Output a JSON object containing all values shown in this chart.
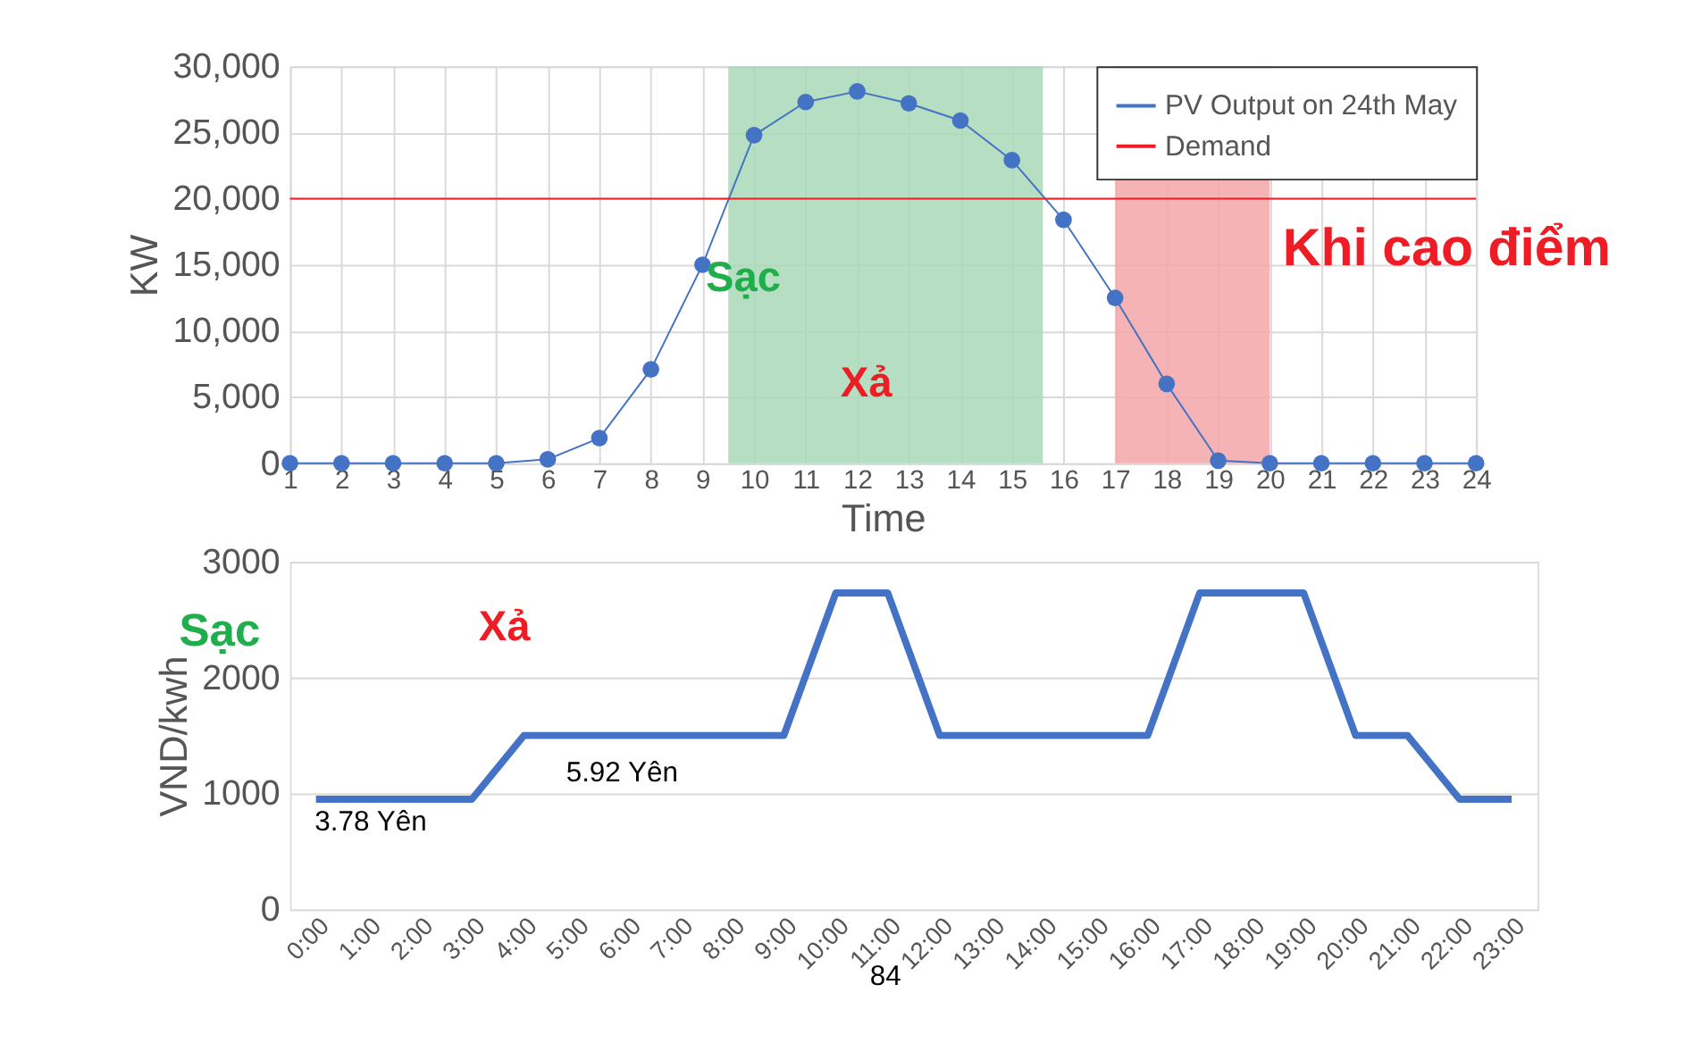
{
  "chart_data": [
    {
      "type": "line",
      "xlabel": "Time",
      "ylabel": "KW",
      "x": [
        1,
        2,
        3,
        4,
        5,
        6,
        7,
        8,
        9,
        10,
        11,
        12,
        13,
        14,
        15,
        16,
        17,
        18,
        19,
        20,
        21,
        22,
        23,
        24
      ],
      "series": [
        {
          "name": "PV Output on 24th May",
          "color": "#4472c4",
          "marker": "circle",
          "values": [
            0,
            0,
            0,
            0,
            0,
            300,
            1900,
            7100,
            15000,
            24800,
            27300,
            28100,
            27200,
            25900,
            22900,
            18400,
            12500,
            6000,
            200,
            0,
            0,
            0,
            0,
            0
          ]
        },
        {
          "name": "Demand",
          "color": "#ee1c25",
          "marker": "none",
          "values": [
            20000,
            20000,
            20000,
            20000,
            20000,
            20000,
            20000,
            20000,
            20000,
            20000,
            20000,
            20000,
            20000,
            20000,
            20000,
            20000,
            20000,
            20000,
            20000,
            20000,
            20000,
            20000,
            20000,
            20000
          ]
        }
      ],
      "bands": [
        {
          "axis": "x",
          "from": 9.5,
          "to": 15.6,
          "color": "#a8d8b9"
        },
        {
          "axis": "x",
          "from": 17,
          "to": 20,
          "color": "#f4a6a8"
        }
      ],
      "annotations": [
        "Sạc",
        "Xả",
        "Khi cao điểm"
      ],
      "xlim": [
        1,
        24
      ],
      "xticks": [
        1,
        2,
        3,
        4,
        5,
        6,
        7,
        8,
        9,
        10,
        11,
        12,
        13,
        14,
        15,
        16,
        17,
        18,
        19,
        20,
        21,
        22,
        23,
        24
      ],
      "ylim": [
        0,
        30000
      ],
      "yticks": [
        0,
        {
          "value": 5000,
          "label": "5,000"
        },
        {
          "value": 10000,
          "label": "10,000"
        },
        {
          "value": 15000,
          "label": "15,000"
        },
        {
          "value": 20000,
          "label": "20,000"
        },
        {
          "value": 25000,
          "label": "25,000"
        },
        {
          "value": 30000,
          "label": "30,000"
        }
      ],
      "grid": true,
      "legend": "top right"
    },
    {
      "type": "line",
      "ylabel": "VND/kwh",
      "categories": [
        "0:00",
        "1:00",
        "2:00",
        "3:00",
        "4:00",
        "5:00",
        "6:00",
        "7:00",
        "8:00",
        "9:00",
        "10:00",
        "11:00",
        "12:00",
        "13:00",
        "14:00",
        "15:00",
        "16:00",
        "17:00",
        "18:00",
        "19:00",
        "20:00",
        "21:00",
        "22:00",
        "23:00"
      ],
      "series": [
        {
          "color": "#4472c4",
          "values": [
            950,
            950,
            950,
            950,
            1500,
            1500,
            1500,
            1500,
            1500,
            1500,
            2730,
            2730,
            1500,
            1500,
            1500,
            1500,
            1500,
            2730,
            2730,
            2730,
            1500,
            1500,
            950,
            950
          ]
        }
      ],
      "annotations": [
        "Sạc",
        "Xả",
        "5.92 Yên",
        "3.78 Yên",
        "84"
      ],
      "ylim": [
        0,
        3000
      ],
      "yticks": [
        0,
        1000,
        2000,
        3000
      ],
      "grid": "y",
      "marker": "none",
      "legend": false
    }
  ]
}
